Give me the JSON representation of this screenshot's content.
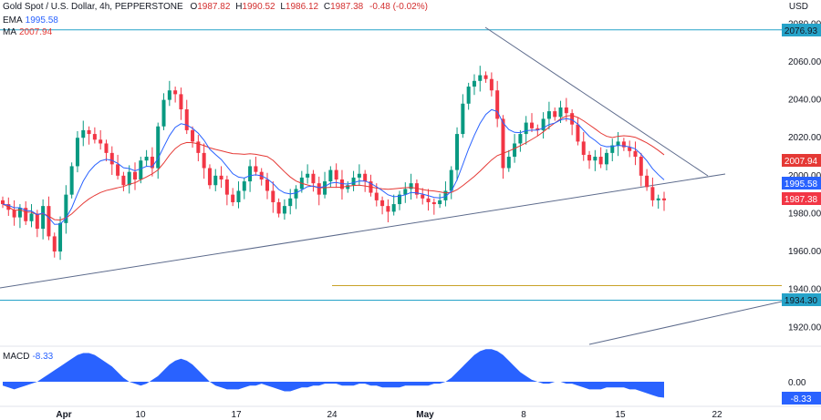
{
  "header": {
    "symbol": "Gold Spot / U.S. Dollar, 4h, PEPPERSTONE",
    "open_label": "O",
    "open": "1987.82",
    "high_label": "H",
    "high": "1990.52",
    "low_label": "L",
    "low": "1986.12",
    "close_label": "C",
    "close": "1987.38",
    "change": "-0.48 (-0.02%)",
    "ema_label": "EMA",
    "ema_value": "1995.58",
    "ma_label": "MA",
    "ma_value": "2007.94"
  },
  "currency": "USD",
  "macd": {
    "label": "MACD",
    "value": "-8.33"
  },
  "colors": {
    "up": "#089981",
    "down": "#f23645",
    "ema": "#2962ff",
    "ma": "#e53935",
    "level": "#26a3c9",
    "trend": "#5d6b8c",
    "macd": "#2962ff",
    "support": "#c9a227"
  },
  "chart_data": {
    "type": "candlestick",
    "y_axis": {
      "ticks": [
        1920,
        1940,
        1960,
        1980,
        2000,
        2020,
        2040,
        2060,
        2080
      ],
      "range": [
        1911,
        2085
      ]
    },
    "x_axis": {
      "ticks": [
        "Apr",
        "10",
        "17",
        "24",
        "May",
        "8",
        "15",
        "22"
      ]
    },
    "price_labels": [
      {
        "value": "2076.93",
        "kind": "level"
      },
      {
        "value": "2007.94",
        "kind": "ma"
      },
      {
        "value": "1995.58",
        "kind": "ema"
      },
      {
        "value": "1987.38",
        "kind": "price"
      },
      {
        "value": "1934.30",
        "kind": "level"
      }
    ],
    "horizontal_levels": [
      2076.93,
      1934.3
    ],
    "support_level": 1942,
    "closes": [
      1985,
      1982,
      1978,
      1983,
      1976,
      1980,
      1972,
      1984,
      1968,
      1960,
      1975,
      1990,
      2005,
      2020,
      2024,
      2022,
      2019,
      2017,
      2012,
      2006,
      2000,
      1995,
      2002,
      1998,
      2008,
      2010,
      2004,
      2026,
      2040,
      2045,
      2043,
      2035,
      2024,
      2018,
      2012,
      2004,
      1995,
      2000,
      1998,
      1990,
      1986,
      1992,
      1997,
      2005,
      2002,
      1998,
      1992,
      1986,
      1980,
      1984,
      1988,
      1993,
      1999,
      2001,
      1996,
      1990,
      1997,
      2003,
      1998,
      1993,
      1995,
      1999,
      2001,
      1997,
      1991,
      1987,
      1984,
      1981,
      1985,
      1990,
      1993,
      1996,
      1990,
      1988,
      1986,
      1985,
      1987,
      1992,
      2003,
      2022,
      2038,
      2047,
      2050,
      2053,
      2051,
      2045,
      2030,
      2004,
      2010,
      2017,
      2022,
      2028,
      2025,
      2024,
      2030,
      2034,
      2031,
      2036,
      2033,
      2027,
      2018,
      2011,
      2008,
      2010,
      2006,
      2012,
      2016,
      2018,
      2015,
      2013,
      2010,
      2000,
      1994,
      1987,
      1988,
      1987
    ]
  },
  "macd_data": [
    -2,
    -3,
    -4,
    -3,
    -2,
    -1,
    0,
    2,
    4,
    6,
    8,
    10,
    12,
    14,
    15,
    15,
    14,
    12,
    10,
    8,
    5,
    2,
    0,
    -1,
    -2,
    -1,
    1,
    3,
    6,
    9,
    11,
    12,
    11,
    9,
    6,
    3,
    0,
    -2,
    -3,
    -4,
    -4,
    -4,
    -3,
    -2,
    -2,
    -1,
    -2,
    -3,
    -4,
    -5,
    -5,
    -4,
    -3,
    -3,
    -2,
    -2,
    -1,
    -1,
    -1,
    -2,
    -2,
    -2,
    -1,
    -1,
    -2,
    -2,
    -3,
    -3,
    -3,
    -3,
    -2,
    -2,
    -2,
    -2,
    -2,
    -1,
    -1,
    0,
    2,
    5,
    8,
    11,
    14,
    16,
    17,
    17,
    16,
    14,
    11,
    8,
    5,
    3,
    1,
    0,
    -1,
    -1,
    0,
    0,
    -1,
    -1,
    -2,
    -3,
    -4,
    -4,
    -4,
    -3,
    -3,
    -3,
    -3,
    -4,
    -4,
    -5,
    -6,
    -7,
    -8,
    -8.33
  ]
}
